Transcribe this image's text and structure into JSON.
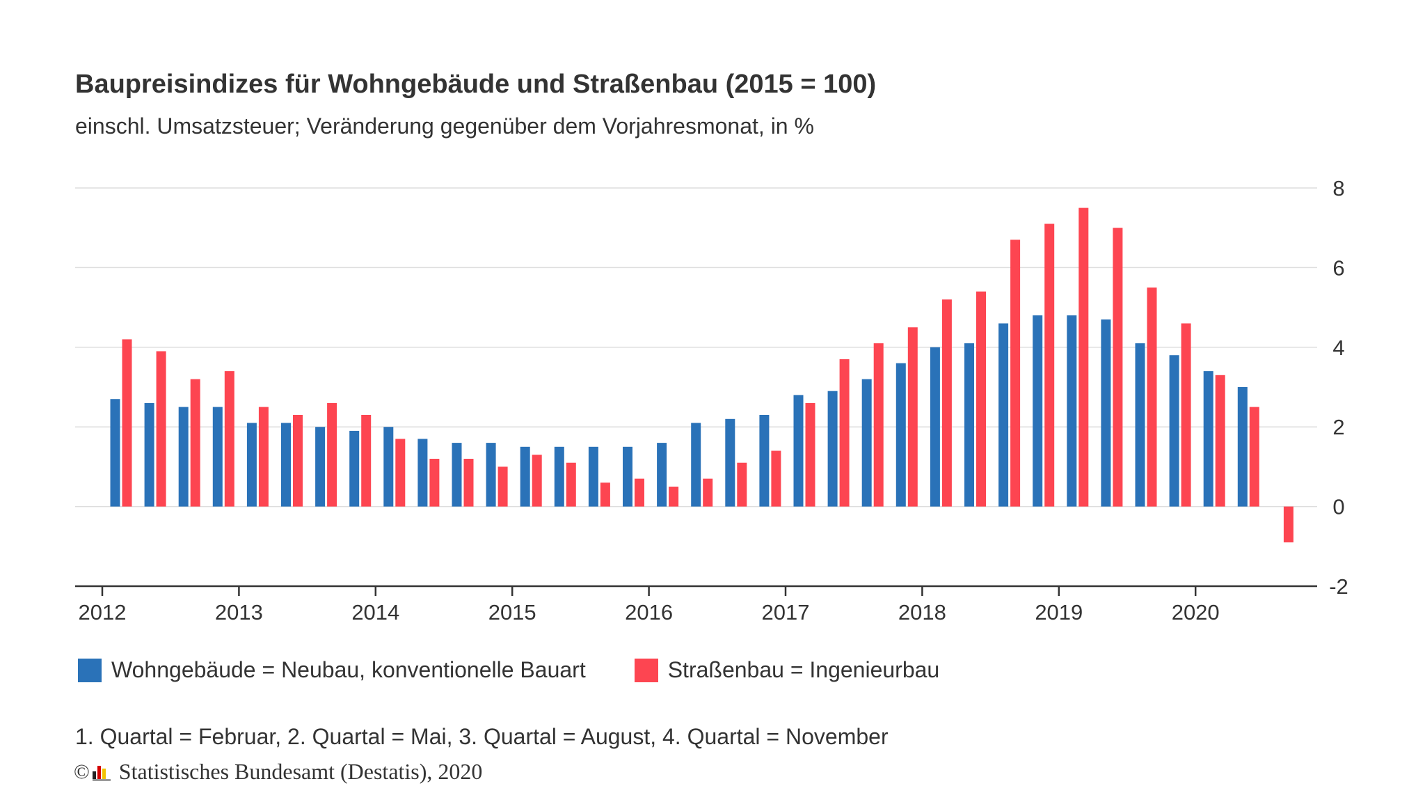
{
  "title": "Baupreisindizes für Wohngebäude und Straßenbau (2015 = 100)",
  "subtitle": "einschl. Umsatzsteuer; Veränderung gegenüber dem Vorjahresmonat, in %",
  "colors": {
    "series1": "#2a72b8",
    "series2": "#fd4551",
    "grid": "#dddddd",
    "axis": "#333333"
  },
  "legend": {
    "series1_label": "Wohngebäude = Neubau, konventionelle Bauart",
    "series2_label": "Straßenbau = Ingenieurbau"
  },
  "note": "1. Quartal = Februar, 2. Quartal = Mai, 3. Quartal = August, 4. Quartal = November",
  "credit": {
    "copyright": "©",
    "source": "Statistisches Bundesamt (Destatis), 2020",
    "logo_icon": "destatis-logo-icon"
  },
  "chart_data": {
    "type": "bar",
    "categories": [
      "2012 Q1",
      "2012 Q2",
      "2012 Q3",
      "2012 Q4",
      "2013 Q1",
      "2013 Q2",
      "2013 Q3",
      "2013 Q4",
      "2014 Q1",
      "2014 Q2",
      "2014 Q3",
      "2014 Q4",
      "2015 Q1",
      "2015 Q2",
      "2015 Q3",
      "2015 Q4",
      "2016 Q1",
      "2016 Q2",
      "2016 Q3",
      "2016 Q4",
      "2017 Q1",
      "2017 Q2",
      "2017 Q3",
      "2017 Q4",
      "2018 Q1",
      "2018 Q2",
      "2018 Q3",
      "2018 Q4",
      "2019 Q1",
      "2019 Q2",
      "2019 Q3",
      "2019 Q4",
      "2020 Q1",
      "2020 Q2",
      "2020 Q3",
      "2020 Q4"
    ],
    "series": [
      {
        "name": "Wohngebäude = Neubau, konventionelle Bauart",
        "values": [
          2.7,
          2.6,
          2.5,
          2.5,
          2.1,
          2.1,
          2.0,
          1.9,
          2.0,
          1.7,
          1.6,
          1.6,
          1.5,
          1.5,
          1.5,
          1.5,
          1.6,
          2.1,
          2.2,
          2.3,
          2.8,
          2.9,
          3.2,
          3.6,
          4.0,
          4.1,
          4.6,
          4.8,
          4.8,
          4.7,
          4.1,
          3.8,
          3.4,
          3.0,
          null,
          null
        ]
      },
      {
        "name": "Straßenbau = Ingenieurbau",
        "values": [
          4.2,
          3.9,
          3.2,
          3.4,
          2.5,
          2.3,
          2.6,
          2.3,
          1.7,
          1.2,
          1.2,
          1.0,
          1.3,
          1.1,
          0.6,
          0.7,
          0.5,
          0.7,
          1.1,
          1.4,
          2.6,
          3.7,
          4.1,
          4.5,
          5.2,
          5.4,
          6.7,
          7.1,
          7.5,
          7.0,
          5.5,
          4.6,
          3.3,
          2.5,
          -0.9,
          null
        ]
      }
    ],
    "x_tick_labels": [
      "2012",
      "2013",
      "2014",
      "2015",
      "2016",
      "2017",
      "2018",
      "2019",
      "2020"
    ],
    "y_ticks": [
      8,
      6,
      4,
      2,
      0,
      -2
    ],
    "ylim": [
      -2,
      8
    ],
    "grid": true,
    "legend_position": "bottom-left",
    "y_axis_side": "right"
  }
}
